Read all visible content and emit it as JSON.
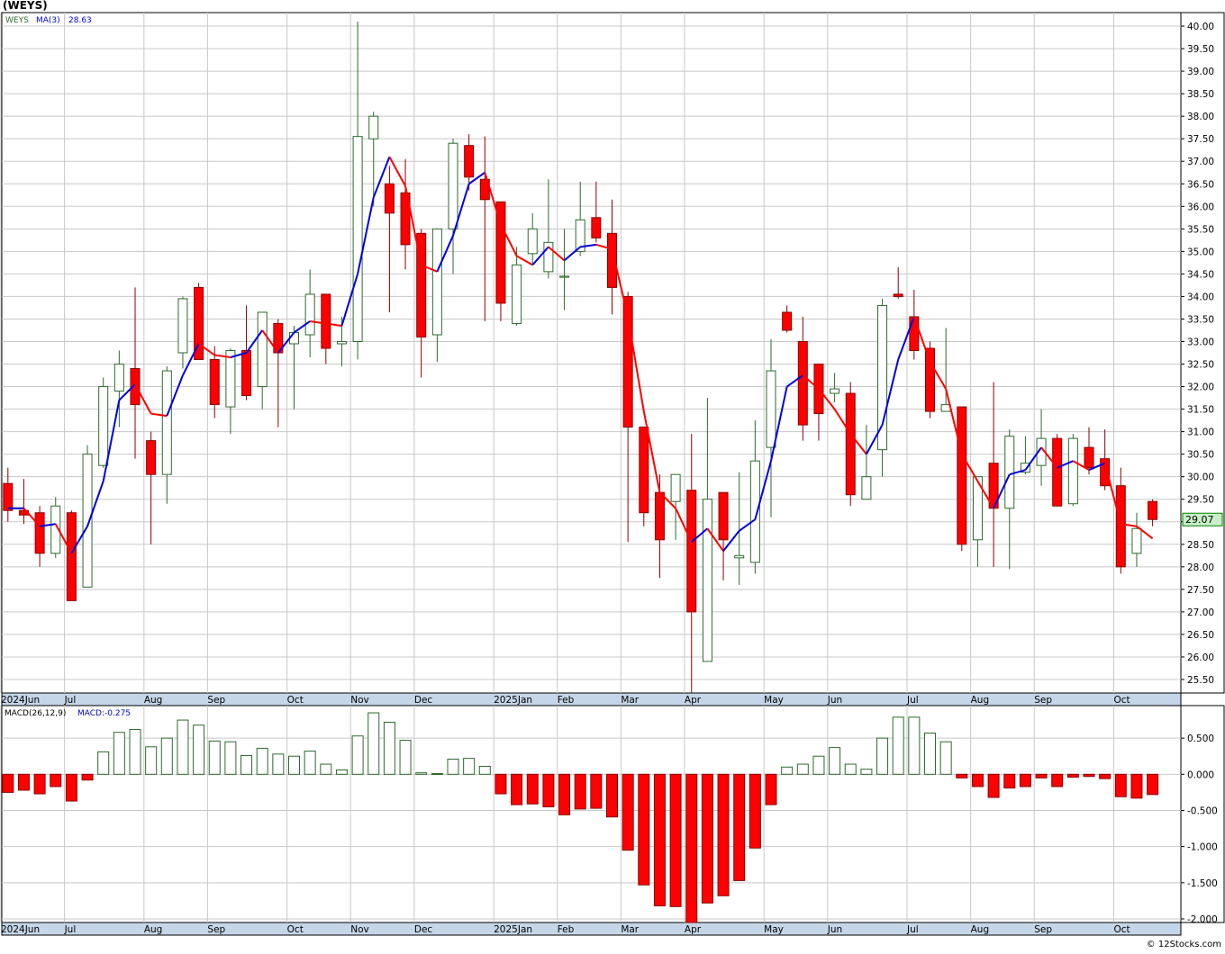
{
  "header": {
    "symbol_title": "(WEYS)"
  },
  "watermark": "© 12Stocks.com",
  "colors": {
    "up": "#2d6a2d",
    "down": "#ff0000",
    "ma_up": "#0000dd",
    "ma_down": "#ff0000",
    "grid": "#c8c8c8",
    "axis_band": "#c5d6e8",
    "last_price_bg": "#c8f0c8"
  },
  "chart_data": [
    {
      "type": "candlestick",
      "legend": {
        "symbol": "WEYS",
        "ma_label": "MA(3)",
        "ma_value": "28.63"
      },
      "last_price_label": "29.07",
      "ylim": [
        25.2,
        40.3
      ],
      "y_ticks": [
        "25.50",
        "26.00",
        "26.50",
        "27.00",
        "27.50",
        "28.00",
        "28.50",
        "29.00",
        "29.50",
        "30.00",
        "30.50",
        "31.00",
        "31.50",
        "32.00",
        "32.50",
        "33.00",
        "33.50",
        "34.00",
        "34.50",
        "35.00",
        "35.50",
        "36.00",
        "36.50",
        "37.00",
        "37.50",
        "38.00",
        "38.50",
        "39.00",
        "39.50",
        "40.00"
      ],
      "x_labels": [
        {
          "i": 0,
          "label": "2024Jun"
        },
        {
          "i": 4,
          "label": "Jul"
        },
        {
          "i": 9,
          "label": "Aug"
        },
        {
          "i": 13,
          "label": "Sep"
        },
        {
          "i": 18,
          "label": "Oct"
        },
        {
          "i": 22,
          "label": "Nov"
        },
        {
          "i": 26,
          "label": "Dec"
        },
        {
          "i": 31,
          "label": "2025Jan"
        },
        {
          "i": 35,
          "label": "Feb"
        },
        {
          "i": 39,
          "label": "Mar"
        },
        {
          "i": 43,
          "label": "Apr"
        },
        {
          "i": 48,
          "label": "May"
        },
        {
          "i": 52,
          "label": "Jun"
        },
        {
          "i": 57,
          "label": "Jul"
        },
        {
          "i": 61,
          "label": "Aug"
        },
        {
          "i": 65,
          "label": "Sep"
        },
        {
          "i": 70,
          "label": "Oct"
        }
      ],
      "candles": [
        {
          "o": 29.85,
          "h": 30.2,
          "l": 29.0,
          "c": 29.25
        },
        {
          "o": 29.25,
          "h": 29.95,
          "l": 28.95,
          "c": 29.15
        },
        {
          "o": 29.2,
          "h": 29.35,
          "l": 28.0,
          "c": 28.3
        },
        {
          "o": 28.3,
          "h": 29.55,
          "l": 28.2,
          "c": 29.35
        },
        {
          "o": 29.2,
          "h": 29.25,
          "l": 27.25,
          "c": 27.25
        },
        {
          "o": 27.55,
          "h": 30.7,
          "l": 27.55,
          "c": 30.5
        },
        {
          "o": 30.25,
          "h": 32.2,
          "l": 30.2,
          "c": 32.0
        },
        {
          "o": 31.9,
          "h": 32.8,
          "l": 31.1,
          "c": 32.5
        },
        {
          "o": 32.4,
          "h": 34.2,
          "l": 30.4,
          "c": 31.6
        },
        {
          "o": 30.8,
          "h": 31.0,
          "l": 28.5,
          "c": 30.05
        },
        {
          "o": 30.05,
          "h": 32.45,
          "l": 29.4,
          "c": 32.35
        },
        {
          "o": 32.75,
          "h": 34.0,
          "l": 32.4,
          "c": 33.95
        },
        {
          "o": 34.2,
          "h": 34.3,
          "l": 32.7,
          "c": 32.6
        },
        {
          "o": 32.6,
          "h": 32.9,
          "l": 31.3,
          "c": 31.6
        },
        {
          "o": 31.55,
          "h": 32.85,
          "l": 30.95,
          "c": 32.8
        },
        {
          "o": 32.8,
          "h": 33.8,
          "l": 31.7,
          "c": 31.8
        },
        {
          "o": 32.0,
          "h": 33.65,
          "l": 31.5,
          "c": 33.65
        },
        {
          "o": 33.4,
          "h": 33.5,
          "l": 31.1,
          "c": 32.75
        },
        {
          "o": 32.95,
          "h": 33.35,
          "l": 31.5,
          "c": 33.2
        },
        {
          "o": 33.15,
          "h": 34.6,
          "l": 32.65,
          "c": 34.05
        },
        {
          "o": 34.05,
          "h": 34.05,
          "l": 32.5,
          "c": 32.85
        },
        {
          "o": 32.95,
          "h": 33.55,
          "l": 32.45,
          "c": 33.0
        },
        {
          "o": 33.0,
          "h": 40.1,
          "l": 32.6,
          "c": 37.55
        },
        {
          "o": 37.5,
          "h": 38.1,
          "l": 36.0,
          "c": 38.0
        },
        {
          "o": 36.5,
          "h": 36.9,
          "l": 33.65,
          "c": 35.85
        },
        {
          "o": 36.3,
          "h": 37.05,
          "l": 34.6,
          "c": 35.15
        },
        {
          "o": 35.4,
          "h": 35.5,
          "l": 32.2,
          "c": 33.1
        },
        {
          "o": 33.15,
          "h": 35.5,
          "l": 32.55,
          "c": 35.5
        },
        {
          "o": 35.5,
          "h": 37.5,
          "l": 34.5,
          "c": 37.4
        },
        {
          "o": 37.35,
          "h": 37.6,
          "l": 36.35,
          "c": 36.65
        },
        {
          "o": 36.6,
          "h": 37.55,
          "l": 33.45,
          "c": 36.15
        },
        {
          "o": 36.1,
          "h": 36.1,
          "l": 33.45,
          "c": 33.85
        },
        {
          "o": 33.4,
          "h": 35.1,
          "l": 33.35,
          "c": 34.7
        },
        {
          "o": 34.95,
          "h": 35.85,
          "l": 34.7,
          "c": 35.5
        },
        {
          "o": 34.55,
          "h": 36.6,
          "l": 34.4,
          "c": 35.2
        },
        {
          "o": 34.45,
          "h": 35.5,
          "l": 33.7,
          "c": 34.45
        },
        {
          "o": 35.0,
          "h": 36.55,
          "l": 34.9,
          "c": 35.7
        },
        {
          "o": 35.75,
          "h": 36.55,
          "l": 35.2,
          "c": 35.3
        },
        {
          "o": 35.4,
          "h": 36.15,
          "l": 33.6,
          "c": 34.2
        },
        {
          "o": 34.0,
          "h": 34.1,
          "l": 28.55,
          "c": 31.1
        },
        {
          "o": 31.1,
          "h": 31.1,
          "l": 28.9,
          "c": 29.2
        },
        {
          "o": 29.65,
          "h": 30.05,
          "l": 27.75,
          "c": 28.6
        },
        {
          "o": 29.45,
          "h": 30.05,
          "l": 28.6,
          "c": 30.05
        },
        {
          "o": 29.7,
          "h": 30.95,
          "l": 25.2,
          "c": 27.0
        },
        {
          "o": 25.9,
          "h": 31.75,
          "l": 25.9,
          "c": 29.5
        },
        {
          "o": 29.65,
          "h": 29.65,
          "l": 27.7,
          "c": 28.6
        },
        {
          "o": 28.2,
          "h": 30.1,
          "l": 27.6,
          "c": 28.25
        },
        {
          "o": 28.1,
          "h": 31.25,
          "l": 27.85,
          "c": 30.35
        },
        {
          "o": 30.65,
          "h": 33.05,
          "l": 29.1,
          "c": 32.35
        },
        {
          "o": 33.65,
          "h": 33.8,
          "l": 33.2,
          "c": 33.25
        },
        {
          "o": 33.0,
          "h": 33.55,
          "l": 30.8,
          "c": 31.15
        },
        {
          "o": 32.5,
          "h": 32.5,
          "l": 30.8,
          "c": 31.4
        },
        {
          "o": 31.85,
          "h": 32.3,
          "l": 31.65,
          "c": 31.95
        },
        {
          "o": 31.85,
          "h": 32.1,
          "l": 29.35,
          "c": 29.6
        },
        {
          "o": 29.5,
          "h": 31.15,
          "l": 29.5,
          "c": 30.0
        },
        {
          "o": 30.6,
          "h": 33.95,
          "l": 30.0,
          "c": 33.8
        },
        {
          "o": 34.05,
          "h": 34.65,
          "l": 33.95,
          "c": 34.0
        },
        {
          "o": 33.55,
          "h": 34.15,
          "l": 32.6,
          "c": 32.8
        },
        {
          "o": 32.85,
          "h": 33.0,
          "l": 31.3,
          "c": 31.45
        },
        {
          "o": 31.45,
          "h": 33.3,
          "l": 31.45,
          "c": 31.6
        },
        {
          "o": 31.55,
          "h": 31.55,
          "l": 28.35,
          "c": 28.5
        },
        {
          "o": 28.6,
          "h": 30.0,
          "l": 28.0,
          "c": 30.0
        },
        {
          "o": 30.3,
          "h": 32.1,
          "l": 28.0,
          "c": 29.3
        },
        {
          "o": 29.3,
          "h": 31.05,
          "l": 27.95,
          "c": 30.9
        },
        {
          "o": 30.1,
          "h": 30.9,
          "l": 30.05,
          "c": 30.3
        },
        {
          "o": 30.25,
          "h": 31.5,
          "l": 29.8,
          "c": 30.85
        },
        {
          "o": 30.85,
          "h": 30.95,
          "l": 29.35,
          "c": 29.35
        },
        {
          "o": 29.4,
          "h": 30.95,
          "l": 29.35,
          "c": 30.85
        },
        {
          "o": 30.65,
          "h": 31.1,
          "l": 30.05,
          "c": 30.2
        },
        {
          "o": 30.4,
          "h": 31.05,
          "l": 29.7,
          "c": 29.8
        },
        {
          "o": 29.8,
          "h": 30.2,
          "l": 27.85,
          "c": 28.0
        },
        {
          "o": 28.3,
          "h": 29.2,
          "l": 28.0,
          "c": 28.85
        },
        {
          "o": 29.45,
          "h": 29.5,
          "l": 28.9,
          "c": 29.05
        }
      ],
      "ma": [
        29.3,
        29.3,
        28.9,
        28.95,
        28.3,
        28.9,
        29.9,
        31.7,
        32.05,
        31.4,
        31.35,
        32.25,
        32.95,
        32.7,
        32.65,
        32.75,
        33.25,
        32.75,
        33.2,
        33.45,
        33.4,
        33.35,
        34.5,
        36.2,
        37.1,
        36.45,
        34.7,
        34.55,
        35.35,
        36.5,
        36.75,
        35.6,
        34.9,
        34.7,
        35.1,
        34.8,
        35.1,
        35.15,
        35.05,
        33.55,
        31.45,
        29.65,
        29.3,
        28.55,
        28.85,
        28.35,
        28.8,
        29.05,
        30.35,
        32.0,
        32.25,
        31.95,
        31.5,
        30.95,
        30.5,
        31.15,
        32.6,
        33.55,
        32.55,
        31.95,
        30.5,
        29.9,
        29.3,
        30.05,
        30.15,
        30.65,
        30.2,
        30.35,
        30.15,
        30.3,
        28.95,
        28.9,
        28.63
      ]
    },
    {
      "type": "bar",
      "legend": {
        "label": "MACD(26,12,9)",
        "value_label": "MACD:-0.275"
      },
      "ylim": [
        -2.05,
        0.95
      ],
      "y_ticks": [
        "-2.000",
        "-1.500",
        "-1.000",
        "-0.500",
        "0.000",
        "0.500"
      ],
      "x_labels": [
        {
          "i": 0,
          "label": "2024Jun"
        },
        {
          "i": 4,
          "label": "Jul"
        },
        {
          "i": 9,
          "label": "Aug"
        },
        {
          "i": 13,
          "label": "Sep"
        },
        {
          "i": 18,
          "label": "Oct"
        },
        {
          "i": 22,
          "label": "Nov"
        },
        {
          "i": 26,
          "label": "Dec"
        },
        {
          "i": 31,
          "label": "2025Jan"
        },
        {
          "i": 35,
          "label": "Feb"
        },
        {
          "i": 39,
          "label": "Mar"
        },
        {
          "i": 43,
          "label": "Apr"
        },
        {
          "i": 48,
          "label": "May"
        },
        {
          "i": 52,
          "label": "Jun"
        },
        {
          "i": 57,
          "label": "Jul"
        },
        {
          "i": 61,
          "label": "Aug"
        },
        {
          "i": 65,
          "label": "Sep"
        },
        {
          "i": 70,
          "label": "Oct"
        }
      ],
      "values": [
        -0.25,
        -0.22,
        -0.27,
        -0.17,
        -0.37,
        -0.08,
        0.31,
        0.58,
        0.62,
        0.38,
        0.5,
        0.75,
        0.68,
        0.46,
        0.45,
        0.26,
        0.36,
        0.28,
        0.25,
        0.32,
        0.14,
        0.06,
        0.53,
        0.85,
        0.72,
        0.47,
        0.02,
        0.01,
        0.21,
        0.22,
        0.11,
        -0.27,
        -0.42,
        -0.41,
        -0.45,
        -0.56,
        -0.48,
        -0.47,
        -0.59,
        -1.05,
        -1.53,
        -1.82,
        -1.83,
        -2.05,
        -1.78,
        -1.68,
        -1.47,
        -1.02,
        -0.42,
        0.1,
        0.14,
        0.25,
        0.37,
        0.14,
        0.07,
        0.5,
        0.79,
        0.79,
        0.57,
        0.45,
        -0.05,
        -0.17,
        -0.32,
        -0.19,
        -0.17,
        -0.05,
        -0.17,
        -0.04,
        -0.03,
        -0.06,
        -0.31,
        -0.33,
        -0.28
      ]
    }
  ]
}
